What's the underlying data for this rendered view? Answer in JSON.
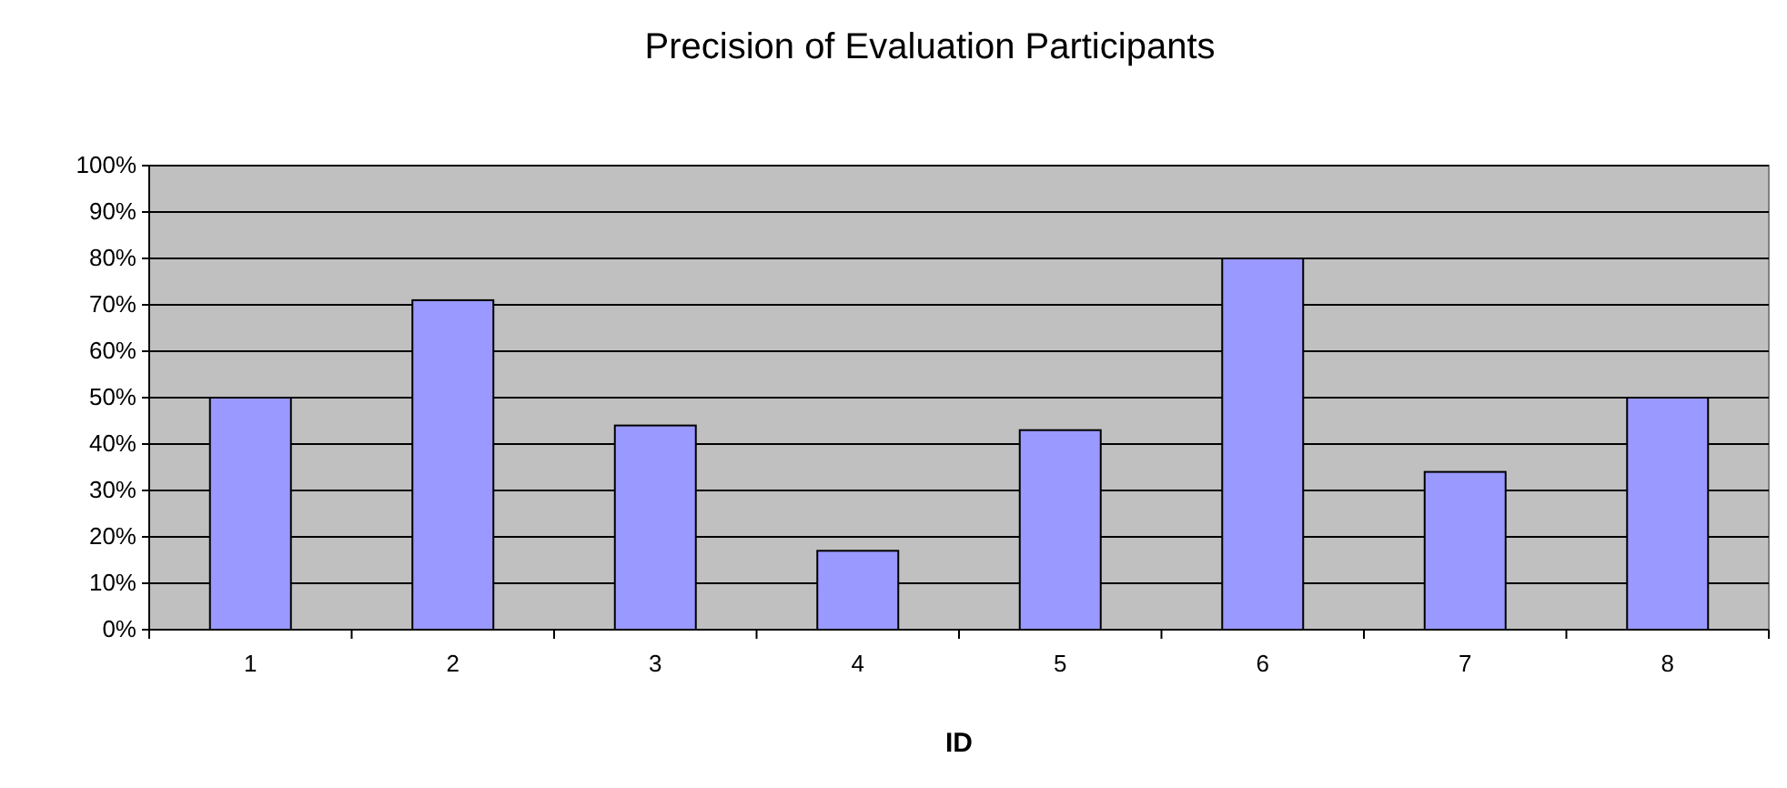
{
  "chart_data": {
    "type": "bar",
    "title": "Precision of Evaluation Participants",
    "xlabel": "ID",
    "categories": [
      "1",
      "2",
      "3",
      "4",
      "5",
      "6",
      "7",
      "8"
    ],
    "values": [
      50,
      71,
      44,
      17,
      43,
      80,
      34,
      50
    ],
    "color": "#9999ff",
    "ylim": [
      0,
      100
    ],
    "yticks": [
      {
        "value": 0,
        "label": "0%"
      },
      {
        "value": 10,
        "label": "10%"
      },
      {
        "value": 20,
        "label": "20%"
      },
      {
        "value": 30,
        "label": "30%"
      },
      {
        "value": 40,
        "label": "40%"
      },
      {
        "value": 50,
        "label": "50%"
      },
      {
        "value": 60,
        "label": "60%"
      },
      {
        "value": 70,
        "label": "70%"
      },
      {
        "value": 80,
        "label": "80%"
      },
      {
        "value": 90,
        "label": "90%"
      },
      {
        "value": 100,
        "label": "100%"
      }
    ],
    "grid": "y"
  }
}
